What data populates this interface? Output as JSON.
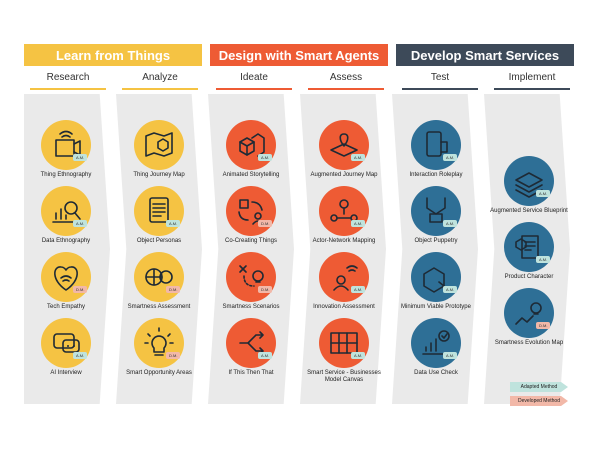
{
  "colors": {
    "yellow": "#f5c343",
    "orange": "#ee5b34",
    "blue": "#2e6f96",
    "navy": "#3d4a59",
    "adapted": "#bfe3dd",
    "developed": "#f2b8a8"
  },
  "phases": [
    {
      "title": "Learn from Things",
      "color": "#f5c343",
      "stages": [
        {
          "label": "Research"
        },
        {
          "label": "Analyze"
        }
      ]
    },
    {
      "title": "Design with Smart Agents",
      "color": "#ee5b34",
      "stages": [
        {
          "label": "Ideate"
        },
        {
          "label": "Assess"
        }
      ]
    },
    {
      "title": "Develop Smart Services",
      "color": "#3d4a59",
      "stages": [
        {
          "label": "Test"
        },
        {
          "label": "Implement"
        }
      ]
    }
  ],
  "columns": [
    {
      "name": "research",
      "items": [
        {
          "label": "Thing Ethnography",
          "badge": "A.M.",
          "icon": "camera-wifi-icon"
        },
        {
          "label": "Data Ethnography",
          "badge": "A.M.",
          "icon": "chart-magnifier-icon"
        },
        {
          "label": "Tech Empathy",
          "badge": "D.M.",
          "icon": "heart-wifi-icon"
        },
        {
          "label": "AI Interview",
          "badge": "A.M.",
          "icon": "chat-robot-icon"
        }
      ]
    },
    {
      "name": "analyze",
      "items": [
        {
          "label": "Thing Journey Map",
          "badge": "",
          "icon": "map-cube-icon"
        },
        {
          "label": "Object Personas",
          "badge": "A.M.",
          "icon": "document-stack-icon"
        },
        {
          "label": "Smartness Assessment",
          "badge": "D.M.",
          "icon": "brain-gear-icon"
        },
        {
          "label": "Smart Opportunity Areas",
          "badge": "D.M.",
          "icon": "lightbulb-icon"
        }
      ]
    },
    {
      "name": "ideate",
      "items": [
        {
          "label": "Animated Storytelling",
          "badge": "A.M.",
          "icon": "cubes-icon"
        },
        {
          "label": "Co-Creating Things",
          "badge": "D.M.",
          "icon": "cycle-person-icon"
        },
        {
          "label": "Smartness Scenarios",
          "badge": "D.M.",
          "icon": "path-bulb-icon"
        },
        {
          "label": "If This Then That",
          "badge": "A.M.",
          "icon": "branch-arrows-icon"
        }
      ]
    },
    {
      "name": "assess",
      "items": [
        {
          "label": "Augmented Journey Map",
          "badge": "A.M.",
          "icon": "map-pin-icon"
        },
        {
          "label": "Actor-Network Mapping",
          "badge": "A.M.",
          "icon": "network-people-icon"
        },
        {
          "label": "Innovation Assessment",
          "badge": "A.M.",
          "icon": "person-wifi-icon"
        },
        {
          "label": "Smart Service - Businesses Model Canvas",
          "badge": "A.M.",
          "icon": "canvas-grid-icon"
        }
      ]
    },
    {
      "name": "test",
      "items": [
        {
          "label": "Interaction Roleplay",
          "badge": "A.M.",
          "icon": "phone-hand-icon"
        },
        {
          "label": "Object Puppetry",
          "badge": "A.M.",
          "icon": "puppet-icon"
        },
        {
          "label": "Minimum Viable Prototype",
          "badge": "A.M.",
          "icon": "box-wrench-icon"
        },
        {
          "label": "Data Use Check",
          "badge": "A.M.",
          "icon": "chart-check-icon"
        }
      ]
    },
    {
      "name": "implement",
      "items": [
        {
          "label": "Augmented Service Blueprint",
          "badge": "A.M.",
          "icon": "layers-icon"
        },
        {
          "label": "Product Character",
          "badge": "A.M.",
          "icon": "cube-document-icon"
        },
        {
          "label": "Smartness Evolution Map",
          "badge": "D.M.",
          "icon": "evolution-bulb-icon"
        }
      ]
    }
  ],
  "legend": {
    "adapted": "Adapted Method",
    "developed": "Developed Method"
  }
}
